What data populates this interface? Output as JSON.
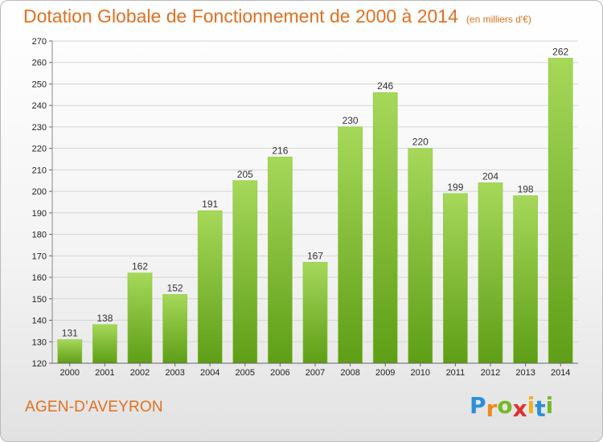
{
  "title": "Dotation Globale de Fonctionnement de 2000 à 2014",
  "subtitle": "(en milliers d'€)",
  "commune": "AGEN-D'AVEYRON",
  "brand": {
    "letters": [
      "P",
      "r",
      "o",
      "x",
      "i",
      "t",
      "i"
    ],
    "colors": [
      "#2a8fd8",
      "#f08a1c",
      "#79b829",
      "#e03030",
      "#f0b020",
      "#2a8fd8",
      "#79b829"
    ]
  },
  "colors": {
    "accent": "#e07020",
    "bar_light": "#a6d85a",
    "bar_dark": "#5e9e16"
  },
  "chart_data": {
    "type": "bar",
    "categories": [
      "2000",
      "2001",
      "2002",
      "2003",
      "2004",
      "2005",
      "2006",
      "2007",
      "2008",
      "2009",
      "2010",
      "2011",
      "2012",
      "2013",
      "2014"
    ],
    "values": [
      131,
      138,
      162,
      152,
      191,
      205,
      216,
      167,
      230,
      246,
      220,
      199,
      204,
      198,
      262
    ],
    "ylim": [
      120,
      270
    ],
    "yticks": [
      120,
      130,
      140,
      150,
      160,
      170,
      180,
      190,
      200,
      210,
      220,
      230,
      240,
      250,
      260,
      270
    ],
    "grid": true,
    "data_labels": true
  }
}
